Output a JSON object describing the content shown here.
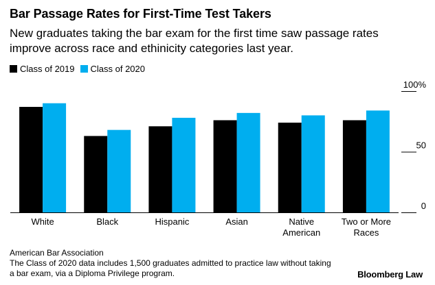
{
  "header": {
    "title": "Bar Passage Rates for First-Time Test Takers",
    "subtitle": "New graduates taking the bar exam for the first time saw passage rates improve across race and ethinicity categories last year."
  },
  "footer": {
    "source": "American Bar Association",
    "note": "The Class of 2020 data includes 1,500 graduates admitted to practice law without taking a bar exam, via a Diploma Privilege program.",
    "brand": "Bloomberg Law"
  },
  "colors": {
    "class_2019": "#000000",
    "class_2020": "#00aeef",
    "axis": "#000000"
  },
  "chart_data": {
    "type": "bar",
    "title": "Bar Passage Rates for First-Time Test Takers",
    "xlabel": "",
    "ylabel": "",
    "ylim": [
      0,
      100
    ],
    "y_ticks": [
      {
        "value": 0,
        "label": "0"
      },
      {
        "value": 50,
        "label": "50"
      },
      {
        "value": 100,
        "label": "100%"
      }
    ],
    "grid": false,
    "legend_position": "top-left",
    "categories": [
      [
        "White"
      ],
      [
        "Black"
      ],
      [
        "Hispanic"
      ],
      [
        "Asian"
      ],
      [
        "Native",
        "American"
      ],
      [
        "Two or More",
        "Races"
      ]
    ],
    "series": [
      {
        "name": "Class of 2019",
        "values": [
          87,
          63,
          71,
          76,
          74,
          76
        ]
      },
      {
        "name": "Class of 2020",
        "values": [
          90,
          68,
          78,
          82,
          80,
          84
        ]
      }
    ]
  }
}
